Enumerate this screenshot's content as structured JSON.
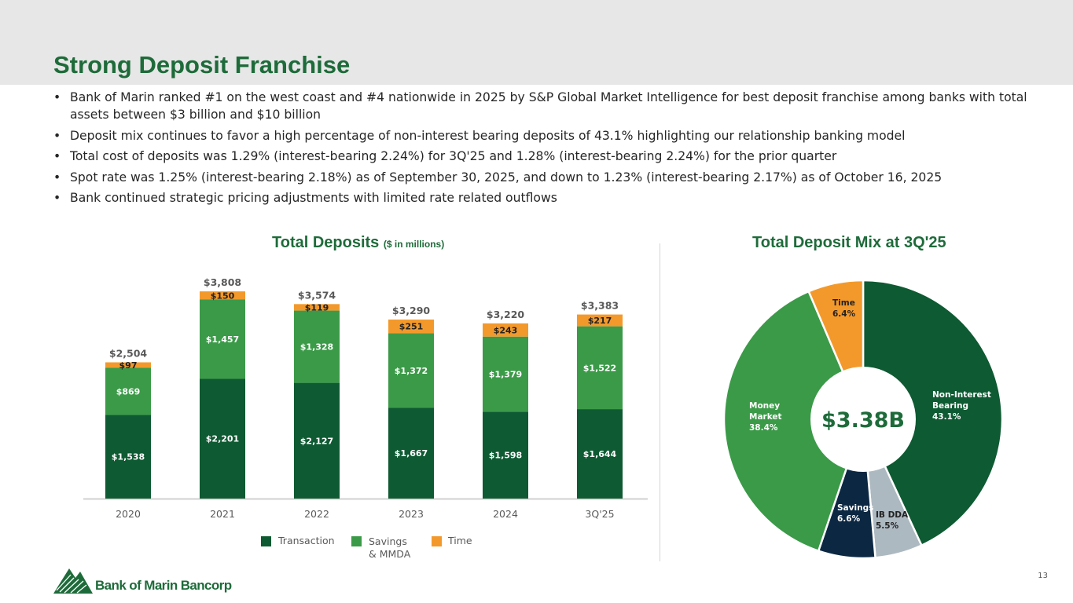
{
  "page": {
    "title": "Strong Deposit Franchise",
    "page_number": "13"
  },
  "bullets": [
    "Bank of Marin ranked #1 on the west coast and #4 nationwide in 2025 by S&P Global Market Intelligence for best deposit franchise among banks with total assets between $3 billion and $10 billion",
    "Deposit mix continues to favor a high percentage of non-interest bearing deposits of 43.1% highlighting our relationship banking model",
    "Total cost of deposits was 1.29% (interest-bearing 2.24%) for 3Q'25 and 1.28% (interest-bearing 2.24%) for the prior quarter",
    "Spot rate was 1.25% (interest-bearing 2.18%) as of September 30, 2025, and down to 1.23% (interest-bearing 2.17%) as of October 16, 2025",
    "Bank continued strategic pricing adjustments with limited rate related outflows"
  ],
  "bullet_marker": "•",
  "logo": {
    "text": "Bank of Marin Bancorp"
  },
  "chart_data": [
    {
      "type": "bar",
      "stacked": true,
      "title": "Total Deposits",
      "subtitle": "($ in millions)",
      "categories": [
        "2020",
        "2021",
        "2022",
        "2023",
        "2024",
        "3Q'25"
      ],
      "series": [
        {
          "name": "Transaction",
          "color": "#0e5a32",
          "values": [
            1538,
            2201,
            2127,
            1667,
            1598,
            1644
          ],
          "labels": [
            "$1,538",
            "$2,201",
            "$2,127",
            "$1,667",
            "$1,598",
            "$1,644"
          ]
        },
        {
          "name": "Savings & MMDA",
          "color": "#3b9a48",
          "values": [
            869,
            1457,
            1328,
            1372,
            1379,
            1522
          ],
          "labels": [
            "$869",
            "$1,457",
            "$1,328",
            "$1,372",
            "$1,379",
            "$1,522"
          ]
        },
        {
          "name": "Time",
          "color": "#f3992b",
          "values": [
            97,
            150,
            119,
            251,
            243,
            217
          ],
          "labels": [
            "$97",
            "$150",
            "$119",
            "$251",
            "$243",
            "$217"
          ]
        }
      ],
      "totals": [
        "$2,504",
        "$3,808",
        "$3,574",
        "$3,290",
        "$3,220",
        "$3,383"
      ],
      "legend": {
        "transaction": "Transaction",
        "savings_line1": "Savings",
        "savings_line2": "& MMDA",
        "time": "Time"
      },
      "ylim": [
        0,
        4000
      ],
      "grid": false,
      "legend_position": "bottom"
    },
    {
      "type": "pie",
      "donut": true,
      "title": "Total Deposit Mix at 3Q'25",
      "center_label": "$3.38B",
      "slices": [
        {
          "name": "Non-Interest Bearing",
          "label_lines": [
            "Non-Interest",
            "Bearing",
            "43.1%"
          ],
          "value": 43.1,
          "color": "#0e5a32"
        },
        {
          "name": "IB DDA",
          "label_lines": [
            "IB DDA",
            "5.5%"
          ],
          "value": 5.5,
          "color": "#adb9c1"
        },
        {
          "name": "Savings",
          "label_lines": [
            "Savings",
            "6.6%"
          ],
          "value": 6.6,
          "color": "#0b2742"
        },
        {
          "name": "Money Market",
          "label_lines": [
            "Money",
            "Market",
            "38.4%"
          ],
          "value": 38.4,
          "color": "#3b9a48"
        },
        {
          "name": "Time",
          "label_lines": [
            "Time",
            "6.4%"
          ],
          "value": 6.4,
          "color": "#f3992b"
        }
      ]
    }
  ]
}
